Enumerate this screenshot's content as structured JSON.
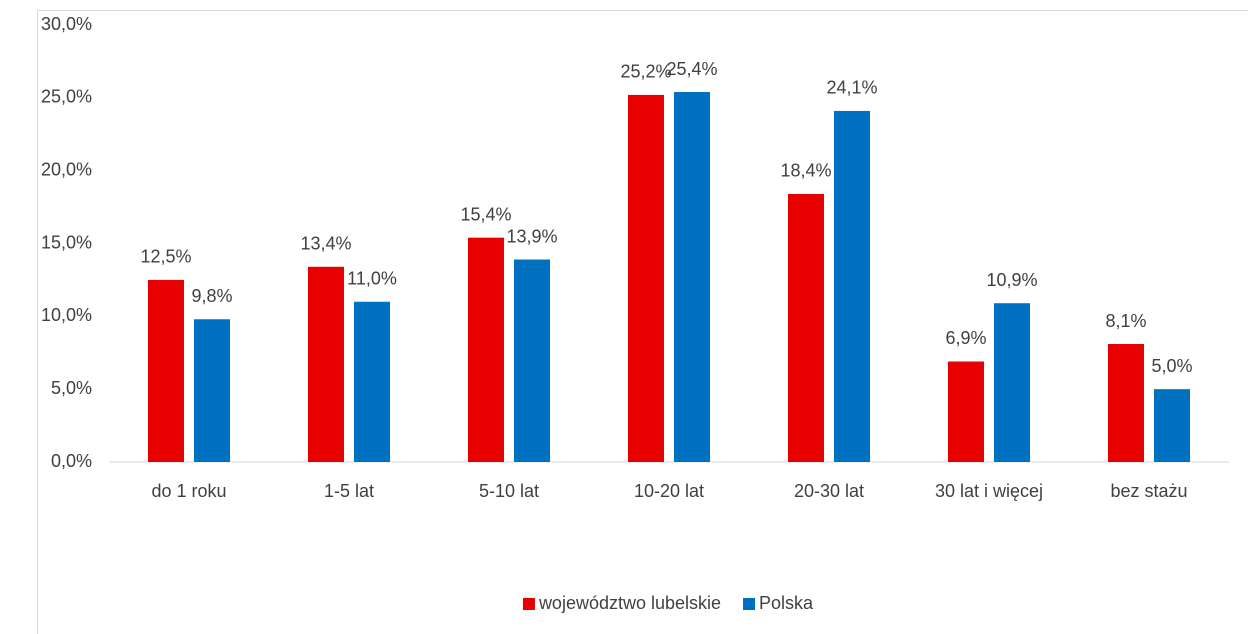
{
  "chart_data": {
    "type": "bar",
    "categories": [
      "do 1 roku",
      "1-5 lat",
      "5-10 lat",
      "10-20 lat",
      "20-30 lat",
      "30 lat i więcej",
      "bez stażu"
    ],
    "series": [
      {
        "name": "województwo lubelskie",
        "color": "#e60000",
        "values": [
          12.5,
          13.4,
          15.4,
          25.2,
          18.4,
          6.9,
          8.1
        ],
        "value_labels": [
          "12,5%",
          "13,4%",
          "15,4%",
          "25,2%",
          "18,4%",
          "6,9%",
          "8,1%"
        ]
      },
      {
        "name": "Polska",
        "color": "#0070c0",
        "values": [
          9.8,
          11.0,
          13.9,
          25.4,
          24.1,
          10.9,
          5.0
        ],
        "value_labels": [
          "9,8%",
          "11,0%",
          "13,9%",
          "25,4%",
          "24,1%",
          "10,9%",
          "5,0%"
        ]
      }
    ],
    "ylim": [
      0,
      30
    ],
    "yticks": [
      {
        "value": 0,
        "label": "0,0%"
      },
      {
        "value": 5,
        "label": "5,0%"
      },
      {
        "value": 10,
        "label": "10,0%"
      },
      {
        "value": 15,
        "label": "15,0%"
      },
      {
        "value": 20,
        "label": "20,0%"
      },
      {
        "value": 25,
        "label": "25,0%"
      },
      {
        "value": 30,
        "label": "30,0%"
      }
    ],
    "grid": false,
    "legend": "bottom"
  }
}
